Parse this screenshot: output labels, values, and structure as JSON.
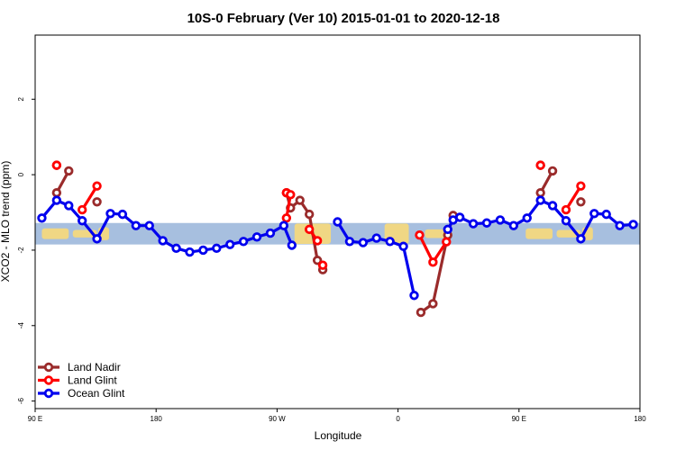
{
  "chart_data": {
    "type": "line",
    "title": "10S-0 February (Ver 10)   2015-01-01 to 2020-12-18",
    "xlabel": "Longitude",
    "ylabel": "XCO2 - MLO trend (ppm)",
    "xlim": [
      90,
      540
    ],
    "ylim": [
      -6.2,
      3.7
    ],
    "x_ticks": [
      {
        "value": 90,
        "label": "90 E"
      },
      {
        "value": 180,
        "label": "180"
      },
      {
        "value": 270,
        "label": "90 W"
      },
      {
        "value": 360,
        "label": "0"
      },
      {
        "value": 450,
        "label": "90 E"
      },
      {
        "value": 540,
        "label": "180"
      }
    ],
    "y_ticks": [
      {
        "value": 2,
        "label": "2"
      },
      {
        "value": 0,
        "label": "0"
      },
      {
        "value": -2,
        "label": "-2"
      },
      {
        "value": -4,
        "label": "-4"
      },
      {
        "value": -6,
        "label": "-6"
      }
    ],
    "band": {
      "ymin": -1.85,
      "ymax": -1.28,
      "color": "#a7bfdf",
      "land_color": "#f8d97a"
    },
    "legend_position": "bottom-left",
    "series": [
      {
        "name": "Land Nadir",
        "color": "#9a2b2b",
        "segments": [
          [
            [
              106,
              0.25
            ]
          ],
          [
            [
              106,
              -0.48
            ],
            [
              115,
              0.1
            ]
          ],
          [
            [
              136,
              -0.72
            ]
          ],
          [
            [
              277,
              -0.48
            ],
            [
              280,
              -0.88
            ],
            [
              287,
              -0.68
            ],
            [
              294,
              -1.05
            ],
            [
              300,
              -2.27
            ],
            [
              304,
              -2.52
            ]
          ],
          [
            [
              377,
              -3.65
            ],
            [
              386,
              -3.42
            ],
            [
              397,
              -1.6
            ],
            [
              401,
              -1.08
            ]
          ],
          [
            [
              466,
              0.25
            ]
          ],
          [
            [
              466,
              -0.48
            ],
            [
              475,
              0.1
            ]
          ],
          [
            [
              496,
              -0.72
            ]
          ]
        ]
      },
      {
        "name": "Land Glint",
        "color": "#ff0000",
        "segments": [
          [
            [
              106,
              0.25
            ]
          ],
          [
            [
              125,
              -0.93
            ],
            [
              136,
              -0.3
            ]
          ],
          [
            [
              277,
              -0.48
            ]
          ],
          [
            [
              277,
              -1.15
            ],
            [
              280,
              -0.53
            ]
          ],
          [
            [
              294,
              -1.45
            ],
            [
              300,
              -1.75
            ]
          ],
          [
            [
              304,
              -2.4
            ]
          ],
          [
            [
              376,
              -1.6
            ],
            [
              386,
              -2.32
            ],
            [
              396,
              -1.78
            ]
          ],
          [
            [
              466,
              0.25
            ]
          ],
          [
            [
              485,
              -0.93
            ],
            [
              496,
              -0.3
            ]
          ]
        ]
      },
      {
        "name": "Ocean Glint",
        "color": "#0000ee",
        "segments": [
          [
            [
              95,
              -1.15
            ],
            [
              106,
              -0.68
            ],
            [
              115,
              -0.82
            ],
            [
              125,
              -1.22
            ],
            [
              136,
              -1.7
            ],
            [
              146,
              -1.03
            ],
            [
              155,
              -1.05
            ],
            [
              165,
              -1.35
            ],
            [
              175,
              -1.35
            ],
            [
              185,
              -1.75
            ],
            [
              195,
              -1.95
            ],
            [
              205,
              -2.05
            ],
            [
              215,
              -2.0
            ],
            [
              225,
              -1.95
            ],
            [
              235,
              -1.85
            ],
            [
              245,
              -1.77
            ],
            [
              255,
              -1.65
            ],
            [
              265,
              -1.55
            ],
            [
              275,
              -1.35
            ],
            [
              281,
              -1.87
            ]
          ],
          [
            [
              315,
              -1.25
            ],
            [
              324,
              -1.77
            ],
            [
              334,
              -1.8
            ],
            [
              344,
              -1.68
            ],
            [
              354,
              -1.77
            ],
            [
              364,
              -1.9
            ],
            [
              372,
              -3.2
            ]
          ],
          [
            [
              397,
              -1.45
            ],
            [
              401,
              -1.2
            ],
            [
              406,
              -1.13
            ],
            [
              416,
              -1.3
            ],
            [
              426,
              -1.28
            ],
            [
              436,
              -1.2
            ],
            [
              446,
              -1.35
            ],
            [
              456,
              -1.15
            ],
            [
              466,
              -0.68
            ],
            [
              475,
              -0.82
            ],
            [
              485,
              -1.22
            ],
            [
              496,
              -1.7
            ],
            [
              506,
              -1.03
            ],
            [
              515,
              -1.05
            ],
            [
              525,
              -1.35
            ],
            [
              535,
              -1.32
            ]
          ]
        ]
      }
    ]
  }
}
